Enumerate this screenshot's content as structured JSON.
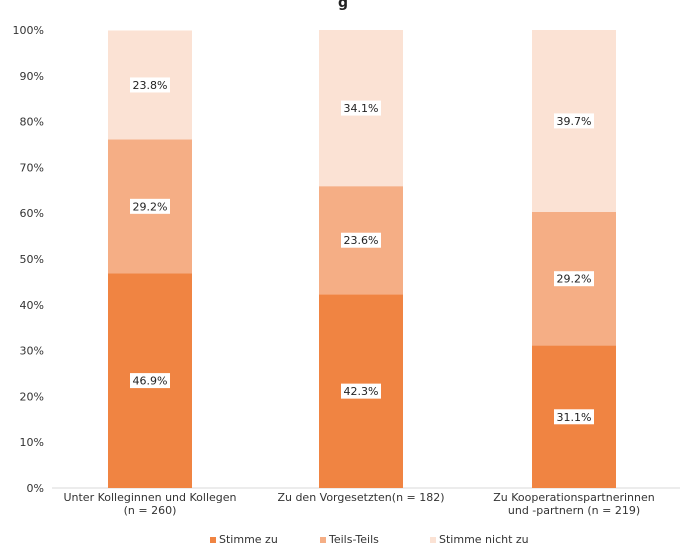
{
  "chart_data": {
    "type": "bar",
    "stacked": true,
    "title": "g",
    "categories": [
      [
        "Unter Kolleginnen und Kollegen",
        "(n = 260)"
      ],
      [
        "Zu den Vorgesetzten(n = 182)"
      ],
      [
        "Zu Kooperationspartnerinnen",
        "und -partnern (n = 219)"
      ]
    ],
    "series": [
      {
        "name": "Stimme zu",
        "color": "#f08442",
        "values": [
          46.9,
          42.3,
          31.1
        ]
      },
      {
        "name": "Teils-Teils",
        "color": "#f5ae85",
        "values": [
          29.2,
          23.6,
          29.2
        ]
      },
      {
        "name": "Stimme nicht zu",
        "color": "#fbe2d4",
        "values": [
          23.8,
          34.1,
          39.7
        ]
      }
    ],
    "data_labels": [
      [
        "46.9%",
        "42.3%",
        "31.1%"
      ],
      [
        "29.2%",
        "23.6%",
        "29.2%"
      ],
      [
        "23.8%",
        "34.1%",
        "39.7%"
      ]
    ],
    "yticks": [
      "0%",
      "10%",
      "20%",
      "30%",
      "40%",
      "50%",
      "60%",
      "70%",
      "80%",
      "90%",
      "100%"
    ],
    "ylim": [
      0,
      100
    ],
    "grid": false,
    "legend": "bottom"
  }
}
